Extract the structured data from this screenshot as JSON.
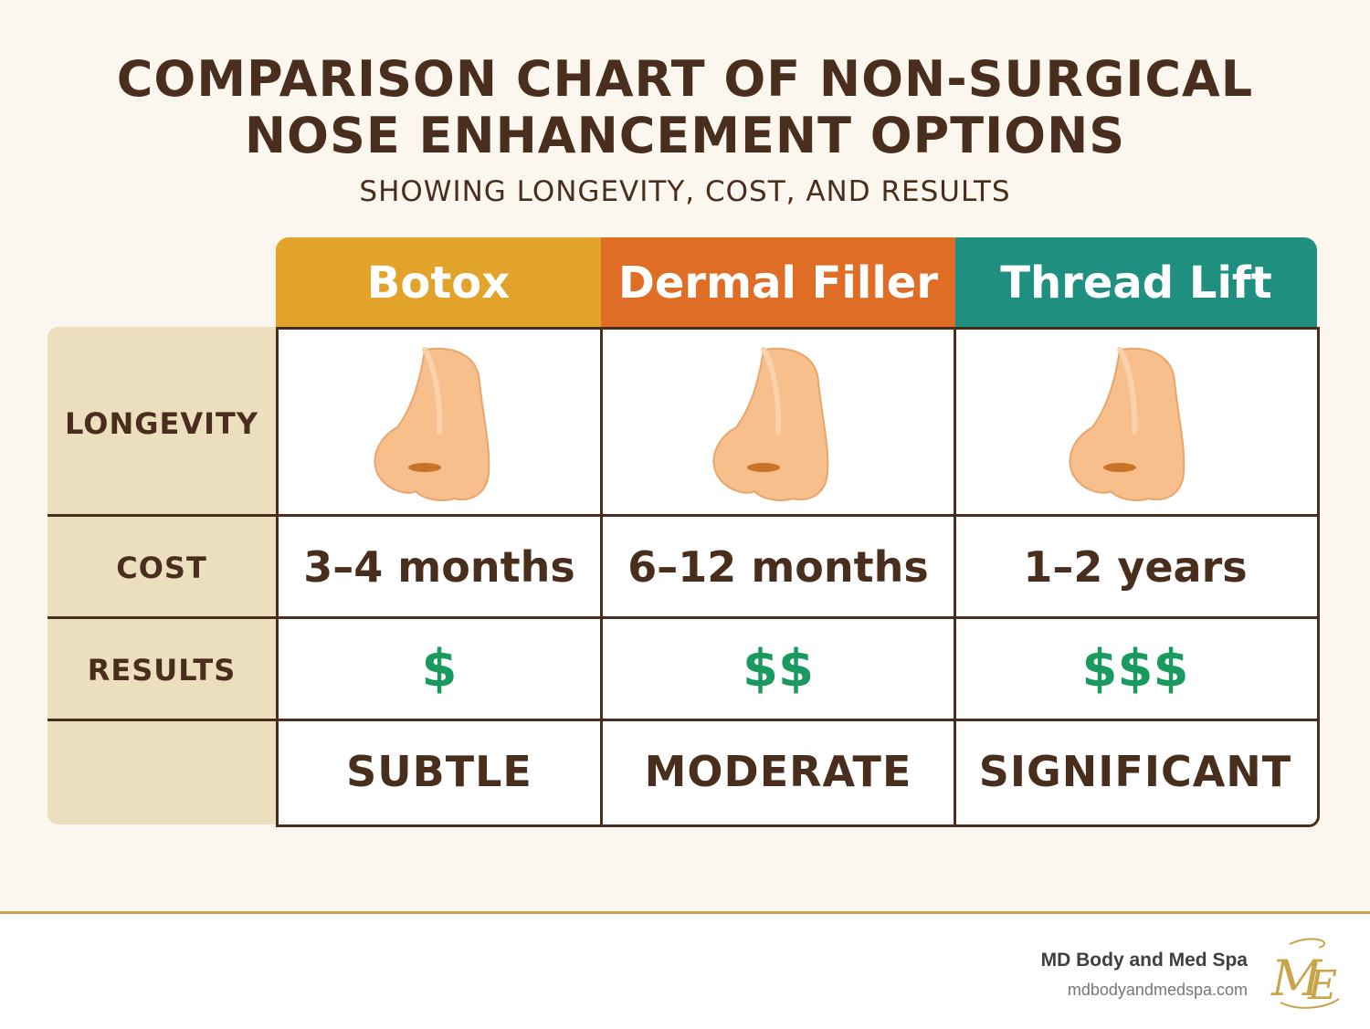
{
  "header": {
    "title_line1": "COMPARISON CHART OF NON-SURGICAL",
    "title_line2": "NOSE ENHANCEMENT OPTIONS",
    "subtitle": "SHOWING LONGEVITY, COST, AND RESULTS"
  },
  "columns": [
    {
      "name": "Botox",
      "color": "#e2a32a"
    },
    {
      "name": "Dermal Filler",
      "color": "#e06d25"
    },
    {
      "name": "Thread Lift",
      "color": "#1f8f80"
    }
  ],
  "row_labels": [
    "LONGEVITY",
    "COST",
    "RESULTS"
  ],
  "rows": {
    "longevity": [
      "3–4 months",
      "6–12 months",
      "1–2 years"
    ],
    "cost": [
      "$",
      "$$",
      "$$$"
    ],
    "results": [
      "SUBTLE",
      "MODERATE",
      "SIGNIFICANT"
    ]
  },
  "icons": {
    "nose": "nose-icon",
    "logo": "md-monogram-logo"
  },
  "colors": {
    "dollar": "#1a9a5e",
    "text": "#4a2e1d",
    "label_bg": "#ecdfbd"
  },
  "footer": {
    "brand": "MD Body and Med Spa",
    "site": "mdbodyandmedspa.com",
    "logo_text": "ME"
  }
}
